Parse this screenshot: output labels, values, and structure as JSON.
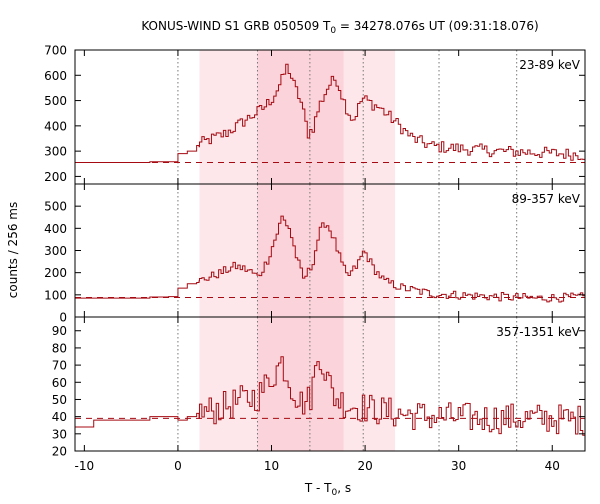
{
  "chart_data": {
    "type": "line",
    "title": "KONUS-WIND S1 GRB 050509 T",
    "title_sub": "0",
    "title_rest": " = 34278.076s UT (09:31:18.076)",
    "xlabel": "T - T",
    "xlabel_sub": "0",
    "xlabel_rest": ", s",
    "ylabel": "counts / 256 ms",
    "xlim": [
      -11,
      43.5
    ],
    "x_ticks": [
      -10,
      0,
      10,
      20,
      30,
      40
    ],
    "dotted_lines_x": [
      0,
      8.5,
      14.1,
      19.8,
      27.9,
      36.2
    ],
    "shaded_light": [
      2.3,
      23.2
    ],
    "shaded_dark": [
      8.5,
      17.7
    ],
    "colors": {
      "curve": "#a50a12",
      "shade_light": "#fde7ea",
      "shade_dark": "#fbd3da",
      "dotted": "#777777"
    },
    "panels": [
      {
        "label": "23-89 keV",
        "ylim": [
          170,
          700
        ],
        "y_ticks": [
          200,
          300,
          400,
          500,
          600,
          700
        ],
        "background": 255,
        "pre": [
          [
            -11,
            255
          ],
          [
            -7,
            255
          ],
          [
            -3,
            258
          ],
          [
            -1,
            258
          ],
          [
            0,
            290
          ],
          [
            1,
            300
          ],
          [
            2,
            320
          ]
        ],
        "anchors": [
          [
            2.3,
            330
          ],
          [
            5,
            370
          ],
          [
            7,
            420
          ],
          [
            9,
            470
          ],
          [
            10,
            510
          ],
          [
            11,
            580
          ],
          [
            11.6,
            640
          ],
          [
            12.3,
            560
          ],
          [
            13,
            500
          ],
          [
            13.8,
            370
          ],
          [
            14.3,
            390
          ],
          [
            15,
            480
          ],
          [
            16,
            560
          ],
          [
            16.8,
            590
          ],
          [
            17.8,
            480
          ],
          [
            18.6,
            420
          ],
          [
            19.6,
            510
          ],
          [
            20.5,
            490
          ],
          [
            21.5,
            470
          ],
          [
            23,
            420
          ],
          [
            25,
            350
          ],
          [
            27,
            320
          ],
          [
            30,
            310
          ],
          [
            34,
            300
          ],
          [
            38,
            295
          ],
          [
            43.5,
            285
          ]
        ],
        "noise": 24
      },
      {
        "label": "89-357 keV",
        "ylim": [
          0,
          600
        ],
        "y_ticks": [
          0,
          100,
          200,
          300,
          400,
          500
        ],
        "background": 88,
        "pre": [
          [
            -11,
            85
          ],
          [
            -7,
            85
          ],
          [
            -3,
            90
          ],
          [
            -1,
            92
          ],
          [
            0,
            130
          ],
          [
            1,
            150
          ],
          [
            2,
            160
          ]
        ],
        "anchors": [
          [
            2.3,
            165
          ],
          [
            4.5,
            200
          ],
          [
            6,
            230
          ],
          [
            7.5,
            210
          ],
          [
            8.5,
            180
          ],
          [
            9.5,
            260
          ],
          [
            10.5,
            380
          ],
          [
            11,
            450
          ],
          [
            11.8,
            400
          ],
          [
            12.5,
            280
          ],
          [
            13.3,
            170
          ],
          [
            14.2,
            230
          ],
          [
            15,
            380
          ],
          [
            15.7,
            430
          ],
          [
            16.5,
            360
          ],
          [
            17.3,
            250
          ],
          [
            18,
            180
          ],
          [
            19,
            230
          ],
          [
            19.8,
            300
          ],
          [
            20.8,
            220
          ],
          [
            22,
            160
          ],
          [
            24,
            130
          ],
          [
            27,
            105
          ],
          [
            32,
            95
          ],
          [
            38,
            85
          ],
          [
            43.5,
            90
          ]
        ],
        "noise": 20
      },
      {
        "label": "357-1351 keV",
        "ylim": [
          20,
          98
        ],
        "y_ticks": [
          20,
          30,
          40,
          50,
          60,
          70,
          80,
          90
        ],
        "background": 39,
        "pre": [
          [
            -11,
            34
          ],
          [
            -9,
            38
          ],
          [
            -7,
            38
          ],
          [
            -3,
            40
          ],
          [
            -1,
            40
          ],
          [
            0,
            38
          ],
          [
            1,
            40
          ],
          [
            2,
            41
          ]
        ],
        "anchors": [
          [
            2.3,
            42
          ],
          [
            5,
            46
          ],
          [
            7,
            50
          ],
          [
            8.5,
            52
          ],
          [
            9.5,
            60
          ],
          [
            10.5,
            68
          ],
          [
            11,
            72
          ],
          [
            12,
            58
          ],
          [
            13,
            48
          ],
          [
            14,
            50
          ],
          [
            15,
            78
          ],
          [
            15.7,
            65
          ],
          [
            16.5,
            52
          ],
          [
            18,
            47
          ],
          [
            20,
            45
          ],
          [
            23,
            42
          ],
          [
            27,
            40
          ],
          [
            33,
            39
          ],
          [
            38,
            39
          ],
          [
            43.5,
            38
          ]
        ],
        "noise": 9
      }
    ]
  }
}
